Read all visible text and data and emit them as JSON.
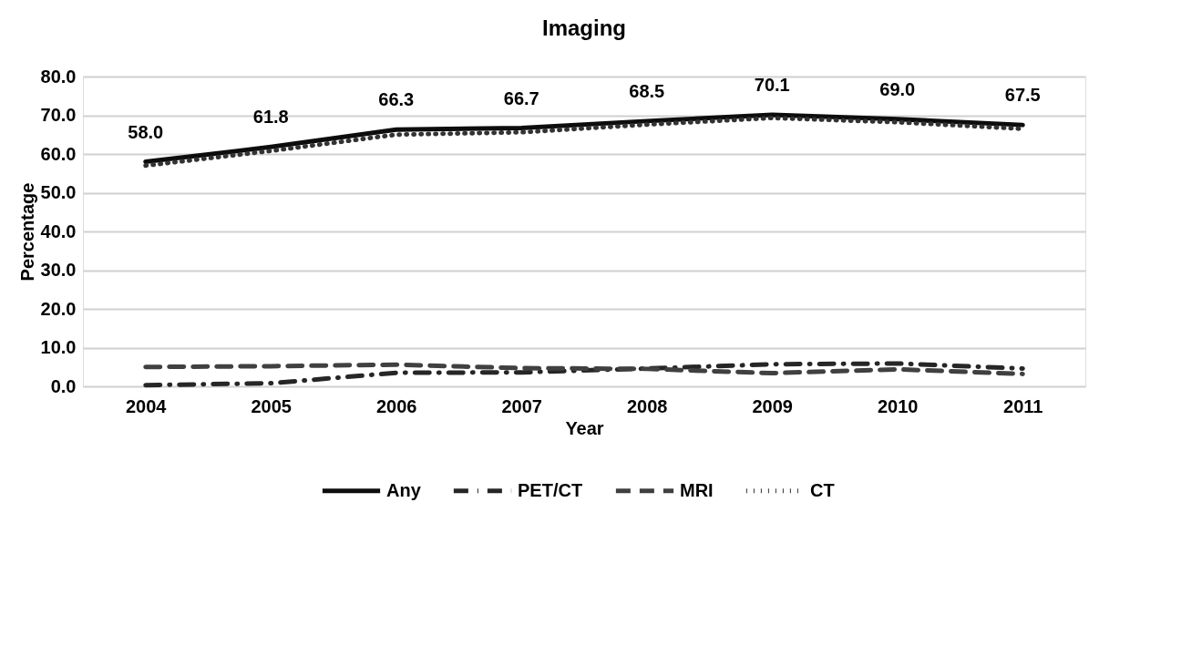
{
  "chart_data": {
    "type": "line",
    "title": "Imaging",
    "xlabel": "Year",
    "ylabel": "Percentage",
    "categories": [
      "2004",
      "2005",
      "2006",
      "2007",
      "2008",
      "2009",
      "2010",
      "2011"
    ],
    "series": [
      {
        "name": "Any",
        "color": "#0d0d0d",
        "line_style": "solid",
        "values": [
          58.0,
          61.8,
          66.3,
          66.7,
          68.5,
          70.1,
          69.0,
          67.5
        ],
        "value_labels": [
          "58.0",
          "61.8",
          "66.3",
          "66.7",
          "68.5",
          "70.1",
          "69.0",
          "67.5"
        ]
      },
      {
        "name": "PET/CT",
        "color": "#262626",
        "line_style": "dashdot",
        "values": [
          0.3,
          0.8,
          3.5,
          3.6,
          4.6,
          5.7,
          5.9,
          4.6
        ]
      },
      {
        "name": "MRI",
        "color": "#404040",
        "line_style": "dashed",
        "values": [
          5.0,
          5.2,
          5.6,
          4.7,
          4.5,
          3.4,
          4.4,
          3.2
        ]
      },
      {
        "name": "CT",
        "color": "#333333",
        "line_style": "dotted",
        "values": [
          57.0,
          60.8,
          65.0,
          65.6,
          67.6,
          69.3,
          68.2,
          66.5
        ]
      }
    ],
    "ylim": [
      0,
      80
    ],
    "yticks": [
      {
        "value": 0,
        "label": "0.0"
      },
      {
        "value": 10,
        "label": "10.0"
      },
      {
        "value": 20,
        "label": "20.0"
      },
      {
        "value": 30,
        "label": "30.0"
      },
      {
        "value": 40,
        "label": "40.0"
      },
      {
        "value": 50,
        "label": "50.0"
      },
      {
        "value": 60,
        "label": "60.0"
      },
      {
        "value": 70,
        "label": "70.0"
      },
      {
        "value": 80,
        "label": "80.0"
      }
    ],
    "grid": "y",
    "legend": "bottom",
    "marker": "none"
  }
}
